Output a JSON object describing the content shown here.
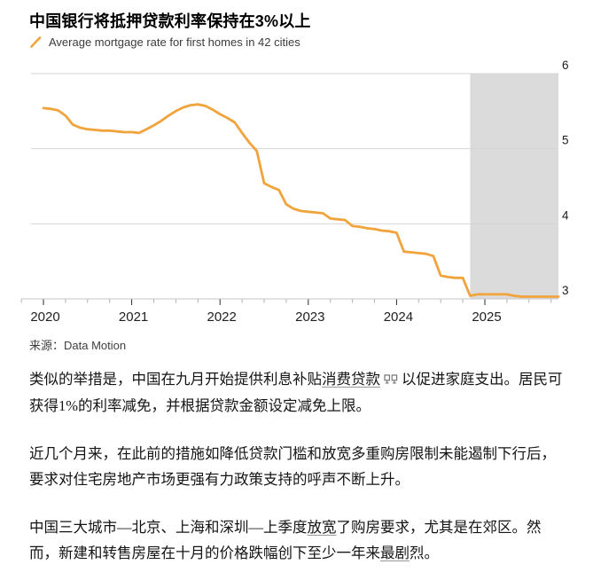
{
  "page": {
    "title": "中国银行将抵押贷款利率保持在3%以上"
  },
  "legend": {
    "label": "Average mortgage rate for first homes in 42 cities",
    "marker_color": "#F1A33C"
  },
  "source": {
    "prefix": "来源：",
    "name": "Data Motion"
  },
  "chart_data": {
    "type": "line",
    "title": "中国银行将抵押贷款利率保持在3%以上",
    "xlabel": "",
    "ylabel": "",
    "unit": "%",
    "grid": true,
    "legend_position": "top-left",
    "x_start": "2020-01",
    "x_step": "month",
    "x_tick_labels": [
      "2020",
      "2021",
      "2022",
      "2023",
      "2024",
      "2025"
    ],
    "y_ticks": [
      3,
      4,
      5,
      6
    ],
    "ylim": [
      3,
      6
    ],
    "shaded_region": {
      "start": "2024-11",
      "end": "2025-11",
      "color": "#DBDBDB"
    },
    "series": [
      {
        "name": "Average mortgage rate for first homes in 42 cities",
        "color": "#F1A33C",
        "values": [
          5.54,
          5.53,
          5.51,
          5.44,
          5.32,
          5.28,
          5.26,
          5.25,
          5.24,
          5.24,
          5.23,
          5.22,
          5.22,
          5.21,
          5.26,
          5.31,
          5.37,
          5.44,
          5.5,
          5.55,
          5.58,
          5.59,
          5.57,
          5.52,
          5.46,
          5.41,
          5.35,
          5.21,
          5.08,
          4.97,
          4.54,
          4.49,
          4.45,
          4.26,
          4.2,
          4.17,
          4.16,
          4.15,
          4.14,
          4.07,
          4.06,
          4.05,
          3.97,
          3.96,
          3.94,
          3.93,
          3.91,
          3.9,
          3.88,
          3.63,
          3.62,
          3.61,
          3.6,
          3.57,
          3.31,
          3.29,
          3.28,
          3.28,
          3.04,
          3.06,
          3.06,
          3.06,
          3.06,
          3.06,
          3.04,
          3.03,
          3.03,
          3.03,
          3.03,
          3.03,
          3.03
        ]
      }
    ]
  },
  "paragraphs": [
    {
      "segments": [
        {
          "t": "类似的举措是，中国在九月开始提供利息补贴"
        },
        {
          "t": "消费贷款",
          "link": true
        },
        {
          "icon": "terminal-icon"
        },
        {
          "t": "以促进家庭支出。居民可获得1%的利率减免，并根据贷款金额设定减免上限。"
        }
      ]
    },
    {
      "segments": [
        {
          "t": "近几个月来，在此前的措施如降低贷款门槛和放宽多重购房限制未能遏制下行后，要求对住宅房地产市场更强有力政策支持的呼声不断上升。"
        }
      ]
    },
    {
      "segments": [
        {
          "t": "中国三大城市––北京、上海和深圳––上季度"
        },
        {
          "t": "放宽",
          "link": true
        },
        {
          "t": "了购房要求，尤其是在郊区。然而，新建和转售房屋在十月的价格跌幅创下至少一年来"
        },
        {
          "t": "最剧",
          "link": true
        },
        {
          "t": "烈。"
        }
      ]
    }
  ],
  "colors": {
    "line_orange": "#F1A33C",
    "shade_gray": "#DBDBDB",
    "grid_gray": "#D4D4D4",
    "axis_gray": "#C6C6C6",
    "tick_dark": "#2b2b2b"
  }
}
